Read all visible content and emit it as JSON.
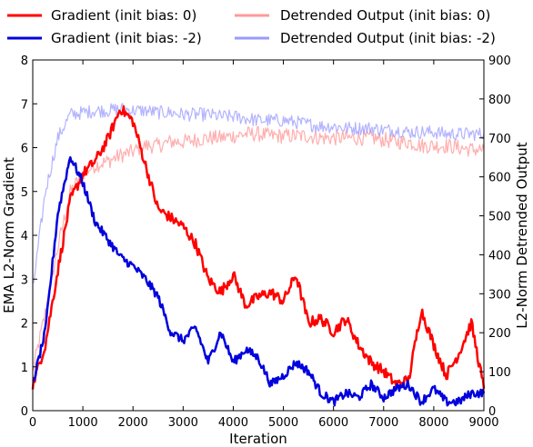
{
  "chart_data": {
    "type": "line",
    "title": "",
    "xlabel": "Iteration",
    "ylabel_left": "EMA L2-Norm Gradient",
    "ylabel_right": "L2-Norm Detrended Output",
    "xlim": [
      0,
      9000
    ],
    "ylim_left": [
      0,
      8
    ],
    "ylim_right": [
      0,
      900
    ],
    "x_ticks": [
      0,
      1000,
      2000,
      3000,
      4000,
      5000,
      6000,
      7000,
      8000,
      9000
    ],
    "y_left_ticks": [
      0,
      1,
      2,
      3,
      4,
      5,
      6,
      7,
      8
    ],
    "y_right_ticks": [
      0,
      100,
      200,
      300,
      400,
      500,
      600,
      700,
      800,
      900
    ],
    "legend_placement": "top, two columns",
    "grid": false,
    "x": [
      0,
      250,
      500,
      750,
      1000,
      1250,
      1500,
      1750,
      2000,
      2250,
      2500,
      2750,
      3000,
      3250,
      3500,
      3750,
      4000,
      4250,
      4500,
      4750,
      5000,
      5250,
      5500,
      5750,
      6000,
      6250,
      6500,
      6750,
      7000,
      7250,
      7500,
      7750,
      8000,
      8250,
      8500,
      8750,
      9000
    ],
    "series": [
      {
        "name": "Gradient (init bias: 0)",
        "axis": "left",
        "color": "#ff0000",
        "values": [
          0.6,
          1.5,
          3.2,
          4.8,
          5.4,
          5.7,
          6.2,
          6.9,
          6.6,
          5.6,
          4.6,
          4.4,
          4.2,
          3.8,
          3.0,
          2.7,
          3.1,
          2.4,
          2.6,
          2.7,
          2.5,
          3.1,
          2.0,
          2.1,
          1.8,
          2.1,
          1.5,
          1.1,
          0.9,
          0.6,
          0.7,
          2.3,
          1.5,
          0.8,
          1.3,
          2.0,
          0.5
        ]
      },
      {
        "name": "Gradient (init bias: -2)",
        "axis": "left",
        "color": "#0000dd",
        "values": [
          0.6,
          1.8,
          4.5,
          5.8,
          5.2,
          4.3,
          3.9,
          3.5,
          3.3,
          3.0,
          2.6,
          1.8,
          1.6,
          1.9,
          1.1,
          1.8,
          1.1,
          1.4,
          1.2,
          0.6,
          0.8,
          1.1,
          0.9,
          0.4,
          0.2,
          0.4,
          0.3,
          0.6,
          0.3,
          0.5,
          0.6,
          0.2,
          0.5,
          0.2,
          0.2,
          0.4,
          0.4
        ]
      },
      {
        "name": "Detrended Output (init bias: 0)",
        "axis": "right",
        "color": "#ff9a9a",
        "values": [
          100,
          250,
          420,
          560,
          610,
          630,
          640,
          655,
          665,
          680,
          680,
          690,
          690,
          695,
          700,
          700,
          705,
          710,
          710,
          705,
          705,
          705,
          705,
          700,
          700,
          700,
          700,
          700,
          695,
          690,
          690,
          680,
          680,
          680,
          675,
          670,
          670
        ]
      },
      {
        "name": "Detrended Output (init bias: -2)",
        "axis": "right",
        "color": "#9a9aff",
        "values": [
          310,
          560,
          700,
          760,
          765,
          770,
          770,
          775,
          770,
          770,
          765,
          765,
          760,
          760,
          760,
          755,
          755,
          750,
          745,
          745,
          745,
          740,
          735,
          730,
          730,
          725,
          725,
          725,
          720,
          720,
          715,
          715,
          715,
          710,
          710,
          710,
          710
        ]
      }
    ]
  }
}
